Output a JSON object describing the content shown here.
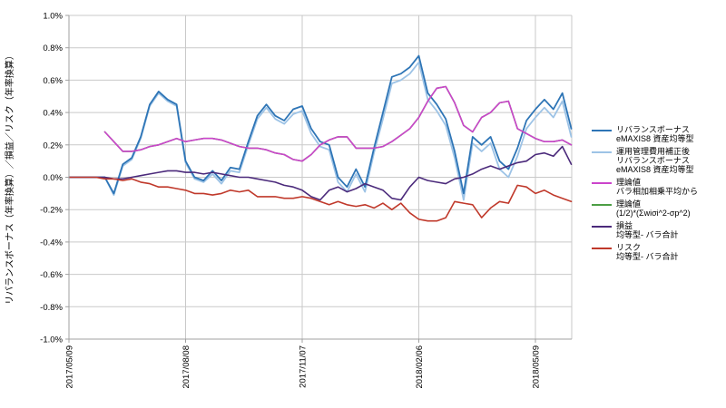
{
  "chart": {
    "y_axis": {
      "title": "リバランスボーナス（年率換算）／損益／リスク（年率換算）",
      "tick_labels": [
        "1.0%",
        "0.8%",
        "0.6%",
        "0.4%",
        "0.2%",
        "0.0%",
        "-0.2%",
        "-0.4%",
        "-0.6%",
        "-0.8%",
        "-1.0%"
      ],
      "tick_values": [
        1.0,
        0.8,
        0.6,
        0.4,
        0.2,
        0.0,
        -0.2,
        -0.4,
        -0.6,
        -0.8,
        -1.0
      ]
    },
    "x_axis": {
      "tick_labels": [
        "2017/05/09",
        "2017/08/08",
        "2017/11/07",
        "2018/02/06",
        "2018/05/09"
      ],
      "tick_indices": [
        0,
        13,
        26,
        39,
        52
      ]
    },
    "colors": {
      "grid": "#C9C9C9",
      "axis": "#A0A0A0",
      "background": "#FFFFFF"
    }
  },
  "chart_data": {
    "type": "line",
    "title": "",
    "xlabel": "",
    "ylabel": "リバランスボーナス（年率換算）／損益／リスク（年率換算）",
    "ylim": [
      -1.0,
      1.0
    ],
    "y_unit": "%",
    "x_description": "weekly samples starting 2017/05/09, ticks every 13 weeks",
    "x_tick_labels": [
      "2017/05/09",
      "2017/08/08",
      "2017/11/07",
      "2018/02/06",
      "2018/05/09"
    ],
    "x_tick_indices": [
      0,
      13,
      26,
      39,
      52
    ],
    "grid": true,
    "legend_position": "right",
    "series": [
      {
        "id": "rebalance-bonus",
        "label_lines": [
          "リバランスボーナス",
          "eMAXIS8 資産均等型"
        ],
        "color": "#2E75B6",
        "values": [
          0,
          0,
          0,
          0,
          0,
          -0.1,
          0.08,
          0.12,
          0.25,
          0.45,
          0.53,
          0.48,
          0.45,
          0.1,
          0,
          -0.02,
          0.04,
          -0.02,
          0.06,
          0.05,
          0.22,
          0.38,
          0.45,
          0.38,
          0.35,
          0.42,
          0.44,
          0.3,
          0.22,
          0.2,
          0,
          -0.06,
          0.05,
          -0.06,
          0.18,
          0.4,
          0.62,
          0.64,
          0.68,
          0.75,
          0.52,
          0.45,
          0.36,
          0.16,
          -0.1,
          0.25,
          0.2,
          0.25,
          0.1,
          0.05,
          0.18,
          0.35,
          0.42,
          0.48,
          0.42,
          0.52,
          0.3
        ]
      },
      {
        "id": "rebalance-bonus-after-fees",
        "label_lines": [
          "運用管理費用補正後",
          "リバランスボーナス",
          "eMAXIS8 資産均等型"
        ],
        "color": "#9DC3E6",
        "values": [
          0,
          0,
          0,
          0,
          0,
          -0.11,
          0.07,
          0.11,
          0.24,
          0.44,
          0.52,
          0.47,
          0.44,
          0.09,
          -0.01,
          -0.03,
          0.02,
          -0.04,
          0.04,
          0.03,
          0.2,
          0.36,
          0.43,
          0.36,
          0.33,
          0.39,
          0.41,
          0.27,
          0.19,
          0.17,
          -0.03,
          -0.09,
          0.02,
          -0.09,
          0.15,
          0.36,
          0.58,
          0.6,
          0.64,
          0.71,
          0.48,
          0.41,
          0.32,
          0.12,
          -0.14,
          0.21,
          0.16,
          0.21,
          0.05,
          0.0,
          0.13,
          0.3,
          0.37,
          0.43,
          0.37,
          0.47,
          0.25
        ]
      },
      {
        "id": "theoretical-arith-geom",
        "label_lines": [
          "理論値",
          "バラ相加相乗平均から"
        ],
        "color": "#CC44CC",
        "values": [
          null,
          null,
          null,
          null,
          0.28,
          0.22,
          0.16,
          0.16,
          0.17,
          0.19,
          0.2,
          0.22,
          0.24,
          0.22,
          0.23,
          0.24,
          0.24,
          0.23,
          0.21,
          0.19,
          0.18,
          0.18,
          0.17,
          0.15,
          0.14,
          0.11,
          0.1,
          0.14,
          0.2,
          0.23,
          0.25,
          0.25,
          0.18,
          0.18,
          0.18,
          0.19,
          0.22,
          0.26,
          0.3,
          0.37,
          0.47,
          0.55,
          0.56,
          0.46,
          0.32,
          0.28,
          0.37,
          0.4,
          0.46,
          0.47,
          0.3,
          0.27,
          0.24,
          0.22,
          0.22,
          0.23,
          0.2
        ]
      },
      {
        "id": "theoretical-formula",
        "label_lines": [
          "理論値",
          "(1/2)*(Σwiσi^2-σp^2)"
        ],
        "color": "#4C9E45",
        "values": [
          null,
          null,
          null,
          null,
          0.28,
          0.22,
          0.16,
          0.16,
          0.17,
          0.19,
          0.2,
          0.22,
          0.24,
          0.22,
          0.23,
          0.24,
          0.24,
          0.23,
          0.21,
          0.19,
          0.18,
          0.18,
          0.17,
          0.15,
          0.14,
          0.11,
          0.1,
          0.14,
          0.2,
          0.23,
          0.25,
          0.25,
          0.18,
          0.18,
          0.18,
          0.19,
          0.22,
          0.26,
          0.3,
          0.37,
          0.47,
          0.55,
          0.56,
          0.46,
          0.32,
          0.28,
          0.37,
          0.4,
          0.46,
          0.47,
          0.3,
          0.27,
          0.24,
          0.22,
          0.22,
          0.23,
          0.2
        ]
      },
      {
        "id": "profit-loss",
        "label_lines": [
          "損益",
          "均等型- バラ合計"
        ],
        "color": "#4B2A7B",
        "values": [
          0,
          0,
          0,
          0,
          0,
          -0.01,
          -0.01,
          0,
          0.01,
          0.02,
          0.03,
          0.04,
          0.04,
          0.03,
          0.03,
          0.02,
          0.03,
          0.02,
          0.01,
          0,
          0,
          -0.01,
          -0.02,
          -0.03,
          -0.05,
          -0.06,
          -0.08,
          -0.12,
          -0.14,
          -0.08,
          -0.06,
          -0.09,
          -0.07,
          -0.04,
          -0.06,
          -0.08,
          -0.13,
          -0.14,
          -0.06,
          0,
          -0.02,
          -0.03,
          -0.04,
          -0.01,
          0,
          0.02,
          0.05,
          0.07,
          0.05,
          0.07,
          0.09,
          0.1,
          0.14,
          0.15,
          0.13,
          0.19,
          0.08
        ]
      },
      {
        "id": "risk",
        "label_lines": [
          "リスク",
          "均等型- バラ合計"
        ],
        "color": "#C0392B",
        "values": [
          0,
          0,
          0,
          0,
          -0.01,
          -0.01,
          -0.02,
          -0.01,
          -0.03,
          -0.04,
          -0.06,
          -0.06,
          -0.07,
          -0.08,
          -0.1,
          -0.1,
          -0.11,
          -0.1,
          -0.08,
          -0.09,
          -0.08,
          -0.12,
          -0.12,
          -0.12,
          -0.13,
          -0.13,
          -0.12,
          -0.13,
          -0.15,
          -0.17,
          -0.15,
          -0.17,
          -0.18,
          -0.17,
          -0.19,
          -0.16,
          -0.2,
          -0.16,
          -0.22,
          -0.26,
          -0.27,
          -0.27,
          -0.25,
          -0.15,
          -0.16,
          -0.17,
          -0.25,
          -0.19,
          -0.15,
          -0.16,
          -0.05,
          -0.06,
          -0.1,
          -0.08,
          -0.11,
          -0.13,
          -0.15
        ]
      }
    ]
  }
}
